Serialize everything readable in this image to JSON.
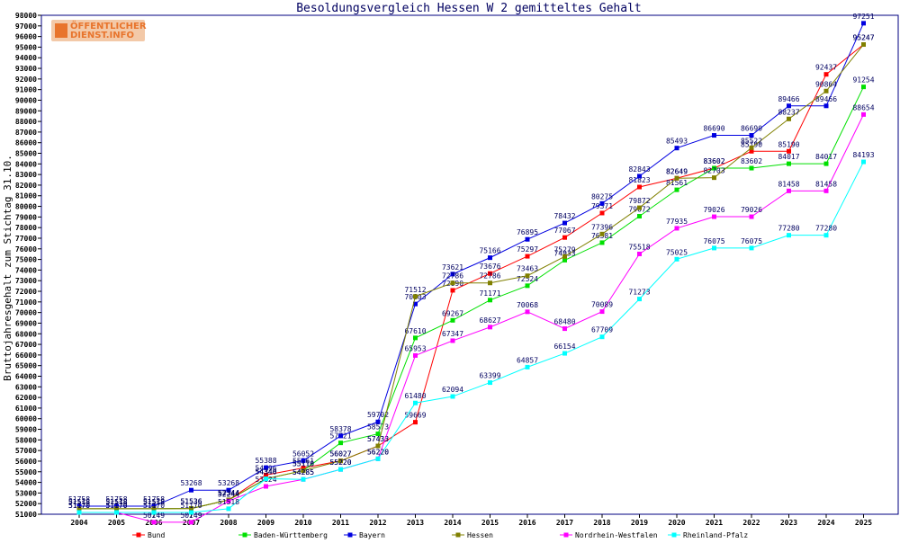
{
  "brand": {
    "line1": "ÖFFENTLICHER",
    "line2": "DIENST.INFO"
  },
  "chart_data": {
    "type": "line",
    "title": "Besoldungsvergleich Hessen W 2 gemitteltes Gehalt",
    "xlabel": "",
    "ylabel": "Bruttojahresgehalt zum Stichtag 31.10.",
    "categories": [
      "2004",
      "2005",
      "2006",
      "2007",
      "2008",
      "2009",
      "2010",
      "2011",
      "2012",
      "2013",
      "2014",
      "2015",
      "2016",
      "2017",
      "2018",
      "2019",
      "2020",
      "2021",
      "2022",
      "2023",
      "2024",
      "2025"
    ],
    "ylim": [
      51000,
      98000
    ],
    "ytick_step": 1000,
    "grid": false,
    "legend_position": "bottom",
    "series": [
      {
        "name": "Bund",
        "color": "#ff0000",
        "values": [
          51518,
          51518,
          51518,
          51536,
          52344,
          54696,
          55361,
          56027,
          57433,
          59669,
          72090,
          73676,
          75297,
          77067,
          79371,
          81823,
          82649,
          83602,
          85190,
          85190,
          92437,
          95247
        ]
      },
      {
        "name": "Baden-Württemberg",
        "color": "#00e000",
        "values": [
          51518,
          51518,
          51518,
          51536,
          52344,
          54340,
          55110,
          57721,
          58573,
          67610,
          69267,
          71171,
          72524,
          74933,
          76581,
          79072,
          81561,
          83602,
          83602,
          84017,
          84017,
          91254
        ]
      },
      {
        "name": "Bayern",
        "color": "#0000e0",
        "values": [
          51758,
          51758,
          51758,
          53268,
          53268,
          55388,
          56052,
          58378,
          59702,
          70803,
          73621,
          75166,
          76895,
          78432,
          80275,
          82843,
          85493,
          86690,
          86690,
          89466,
          89466,
          97251
        ]
      },
      {
        "name": "Hessen",
        "color": "#808000",
        "values": [
          51518,
          51518,
          51518,
          51536,
          52344,
          54340,
          55110,
          56027,
          57433,
          71512,
          72786,
          72786,
          73463,
          75279,
          77396,
          79872,
          82649,
          82703,
          85522,
          88237,
          90864,
          95247
        ]
      },
      {
        "name": "Nordrhein-Westfalen",
        "color": "#ff00ff",
        "values": [
          51170,
          51170,
          50249,
          50249,
          52244,
          53624,
          54285,
          55220,
          56220,
          65953,
          67347,
          68627,
          70068,
          68480,
          70089,
          75518,
          77935,
          79026,
          79026,
          81458,
          81458,
          88654
        ]
      },
      {
        "name": "Rheinland-Pfalz",
        "color": "#00ffff",
        "values": [
          51170,
          51170,
          51170,
          51170,
          51518,
          54340,
          54285,
          55220,
          56220,
          61480,
          62094,
          63399,
          64857,
          66154,
          67709,
          71273,
          75025,
          76075,
          76075,
          77280,
          77280,
          84193
        ]
      }
    ]
  }
}
